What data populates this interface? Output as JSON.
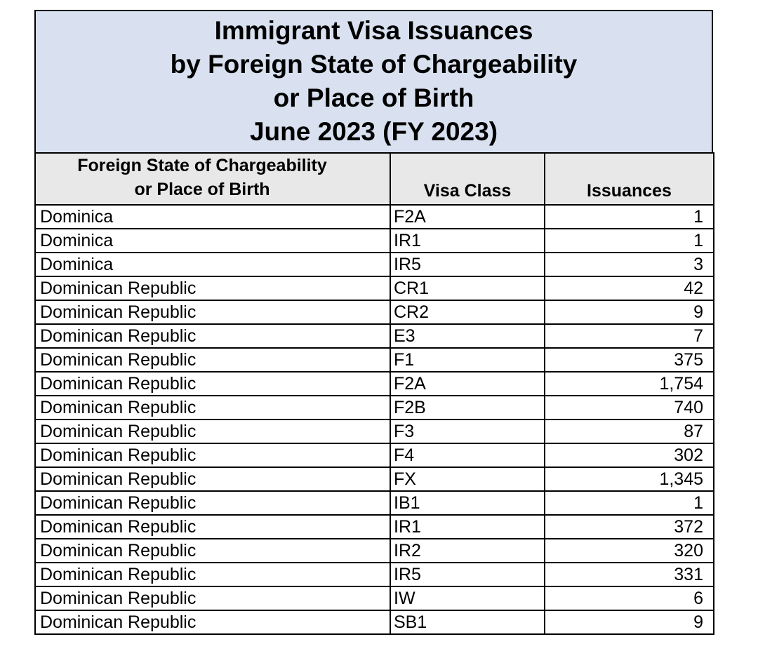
{
  "title": {
    "line1": "Immigrant Visa Issuances",
    "line2": "by Foreign State of Chargeability",
    "line3": "or Place of Birth",
    "line4": "June 2023 (FY 2023)"
  },
  "columns": {
    "country_line1": "Foreign State of Chargeability",
    "country_line2": "or Place of Birth",
    "visa_class": "Visa Class",
    "issuances": "Issuances"
  },
  "rows": [
    {
      "country": "Dominica",
      "visa_class": "F2A",
      "issuances": "1"
    },
    {
      "country": "Dominica",
      "visa_class": "IR1",
      "issuances": "1"
    },
    {
      "country": "Dominica",
      "visa_class": "IR5",
      "issuances": "3"
    },
    {
      "country": "Dominican Republic",
      "visa_class": "CR1",
      "issuances": "42"
    },
    {
      "country": "Dominican Republic",
      "visa_class": "CR2",
      "issuances": "9"
    },
    {
      "country": "Dominican Republic",
      "visa_class": "E3",
      "issuances": "7"
    },
    {
      "country": "Dominican Republic",
      "visa_class": "F1",
      "issuances": "375"
    },
    {
      "country": "Dominican Republic",
      "visa_class": "F2A",
      "issuances": "1,754"
    },
    {
      "country": "Dominican Republic",
      "visa_class": "F2B",
      "issuances": "740"
    },
    {
      "country": "Dominican Republic",
      "visa_class": "F3",
      "issuances": "87"
    },
    {
      "country": "Dominican Republic",
      "visa_class": "F4",
      "issuances": "302"
    },
    {
      "country": "Dominican Republic",
      "visa_class": "FX",
      "issuances": "1,345"
    },
    {
      "country": "Dominican Republic",
      "visa_class": "IB1",
      "issuances": "1"
    },
    {
      "country": "Dominican Republic",
      "visa_class": "IR1",
      "issuances": "372"
    },
    {
      "country": "Dominican Republic",
      "visa_class": "IR2",
      "issuances": "320"
    },
    {
      "country": "Dominican Republic",
      "visa_class": "IR5",
      "issuances": "331"
    },
    {
      "country": "Dominican Republic",
      "visa_class": "IW",
      "issuances": "6"
    },
    {
      "country": "Dominican Republic",
      "visa_class": "SB1",
      "issuances": "9"
    }
  ]
}
